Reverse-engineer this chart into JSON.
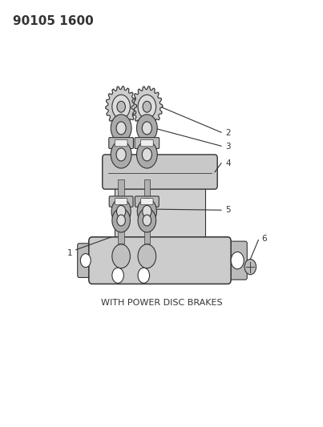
{
  "title_text": "90105 1600",
  "caption": "WITH POWER DISC BRAKES",
  "background_color": "#ffffff",
  "line_color": "#333333",
  "title_fontsize": 11,
  "caption_fontsize": 8,
  "fig_width": 4.03,
  "fig_height": 5.33,
  "dpi": 100
}
